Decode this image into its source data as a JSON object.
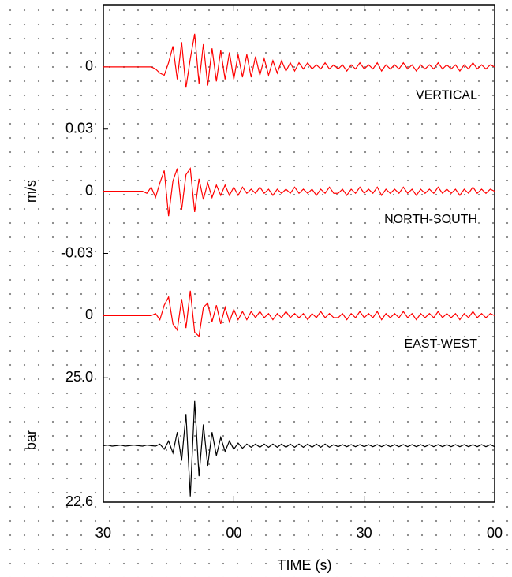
{
  "chart_data": [
    {
      "type": "line",
      "x": [
        0,
        1,
        2,
        3,
        4,
        5,
        6,
        7,
        8,
        9,
        10,
        11,
        12,
        13,
        14,
        15,
        16,
        17,
        18,
        19,
        20,
        21,
        22,
        23,
        24,
        25,
        26,
        27,
        28,
        29,
        30,
        31,
        32,
        33,
        34,
        35,
        36,
        37,
        38,
        39,
        40,
        41,
        42,
        43,
        44,
        45,
        46,
        47,
        48,
        49,
        50,
        51,
        52,
        53,
        54,
        55,
        56,
        57,
        58,
        59,
        60,
        61,
        62,
        63,
        64,
        65,
        66,
        67,
        68,
        69,
        70,
        71,
        72,
        73,
        74,
        75,
        76,
        77,
        78,
        79,
        80,
        81,
        82,
        83,
        84,
        85,
        86,
        87,
        88,
        89,
        90
      ],
      "series": [
        {
          "name": "VERTICAL",
          "color": "#ff0000",
          "values": [
            0,
            0,
            0,
            0,
            0,
            0,
            0,
            0,
            0,
            0,
            0,
            0,
            -0.001,
            -0.003,
            -0.004,
            0.002,
            0.01,
            -0.006,
            0.012,
            -0.01,
            0.004,
            0.016,
            -0.008,
            0.011,
            -0.009,
            0.009,
            -0.007,
            0.008,
            -0.006,
            0.007,
            -0.006,
            0.006,
            -0.005,
            0.006,
            -0.005,
            0.005,
            -0.004,
            0.004,
            -0.004,
            0.003,
            -0.003,
            0.003,
            -0.002,
            0.002,
            -0.002,
            0.002,
            -0.001,
            0.002,
            -0.001,
            0.001,
            -0.001,
            0.002,
            -0.001,
            0.001,
            -0.001,
            0.001,
            -0.002,
            0.001,
            -0.001,
            0.002,
            -0.001,
            0.001,
            -0.001,
            0.002,
            -0.002,
            0.001,
            -0.001,
            0.001,
            -0.001,
            0.002,
            -0.001,
            0.001,
            -0.002,
            0.001,
            -0.001,
            0.001,
            -0.001,
            0.002,
            -0.001,
            0.001,
            -0.001,
            0.001,
            -0.002,
            0.001,
            -0.001,
            0.002,
            -0.001,
            0.001,
            -0.001,
            0.001,
            0
          ]
        }
      ],
      "ylim": [
        -0.03,
        0.03
      ],
      "yticks": [
        0
      ]
    },
    {
      "type": "line",
      "x": [
        0,
        1,
        2,
        3,
        4,
        5,
        6,
        7,
        8,
        9,
        10,
        11,
        12,
        13,
        14,
        15,
        16,
        17,
        18,
        19,
        20,
        21,
        22,
        23,
        24,
        25,
        26,
        27,
        28,
        29,
        30,
        31,
        32,
        33,
        34,
        35,
        36,
        37,
        38,
        39,
        40,
        41,
        42,
        43,
        44,
        45,
        46,
        47,
        48,
        49,
        50,
        51,
        52,
        53,
        54,
        55,
        56,
        57,
        58,
        59,
        60,
        61,
        62,
        63,
        64,
        65,
        66,
        67,
        68,
        69,
        70,
        71,
        72,
        73,
        74,
        75,
        76,
        77,
        78,
        79,
        80,
        81,
        82,
        83,
        84,
        85,
        86,
        87,
        88,
        89,
        90
      ],
      "series": [
        {
          "name": "NORTH-SOUTH",
          "color": "#ff0000",
          "values": [
            0,
            0,
            0,
            0,
            0,
            0,
            0,
            0,
            0,
            0,
            -0.001,
            0.002,
            -0.003,
            0.004,
            0.01,
            -0.012,
            0.005,
            0.011,
            -0.009,
            0.008,
            0.011,
            -0.01,
            0.006,
            -0.004,
            0.004,
            -0.003,
            0.003,
            -0.002,
            0.003,
            -0.002,
            0.002,
            -0.002,
            0.002,
            -0.001,
            0.001,
            -0.001,
            0.002,
            -0.001,
            0.001,
            -0.002,
            0.001,
            -0.001,
            0.001,
            -0.001,
            0.002,
            -0.001,
            0.001,
            -0.001,
            0.001,
            -0.002,
            0.001,
            -0.001,
            0.002,
            -0.001,
            -0.001,
            0.001,
            -0.002,
            0.001,
            -0.001,
            0.002,
            -0.001,
            0.001,
            -0.001,
            0.002,
            -0.002,
            0.001,
            -0.001,
            0.001,
            -0.001,
            0.002,
            -0.001,
            0.001,
            -0.002,
            0.001,
            -0.001,
            0.001,
            -0.001,
            0.002,
            -0.001,
            0.001,
            -0.001,
            0.001,
            -0.002,
            0.001,
            -0.001,
            0.002,
            -0.001,
            0.001,
            -0.001,
            0.001,
            0
          ]
        }
      ],
      "ylim": [
        -0.03,
        0.03
      ],
      "yticks": [
        0.03,
        0,
        -0.03
      ],
      "ylabel": "m/s"
    },
    {
      "type": "line",
      "x": [
        0,
        1,
        2,
        3,
        4,
        5,
        6,
        7,
        8,
        9,
        10,
        11,
        12,
        13,
        14,
        15,
        16,
        17,
        18,
        19,
        20,
        21,
        22,
        23,
        24,
        25,
        26,
        27,
        28,
        29,
        30,
        31,
        32,
        33,
        34,
        35,
        36,
        37,
        38,
        39,
        40,
        41,
        42,
        43,
        44,
        45,
        46,
        47,
        48,
        49,
        50,
        51,
        52,
        53,
        54,
        55,
        56,
        57,
        58,
        59,
        60,
        61,
        62,
        63,
        64,
        65,
        66,
        67,
        68,
        69,
        70,
        71,
        72,
        73,
        74,
        75,
        76,
        77,
        78,
        79,
        80,
        81,
        82,
        83,
        84,
        85,
        86,
        87,
        88,
        89,
        90
      ],
      "series": [
        {
          "name": "EAST-WEST",
          "color": "#ff0000",
          "values": [
            0,
            0,
            0,
            0,
            0,
            0,
            0,
            0,
            0,
            0,
            0,
            0,
            0.001,
            -0.002,
            0.005,
            0.009,
            -0.004,
            -0.007,
            0.008,
            -0.006,
            0.012,
            -0.008,
            -0.01,
            0.004,
            0.006,
            -0.003,
            0.005,
            -0.004,
            0.004,
            -0.003,
            0.003,
            -0.002,
            0.002,
            -0.002,
            0.002,
            -0.001,
            0.002,
            -0.001,
            0.001,
            -0.002,
            0.001,
            -0.001,
            0.002,
            -0.001,
            0.001,
            -0.001,
            0.001,
            -0.002,
            0.001,
            -0.001,
            0.002,
            -0.001,
            0.001,
            -0.001,
            -0.001,
            0.001,
            -0.002,
            0.001,
            -0.001,
            0.002,
            -0.001,
            0.001,
            -0.001,
            0.002,
            -0.002,
            0.001,
            -0.001,
            0.001,
            -0.001,
            0.002,
            -0.001,
            0.001,
            -0.002,
            0.001,
            -0.001,
            0.001,
            -0.001,
            0.002,
            -0.001,
            0.001,
            -0.001,
            0.001,
            -0.002,
            0.001,
            -0.001,
            0.002,
            -0.001,
            0.001,
            -0.001,
            0.001,
            0
          ]
        }
      ],
      "ylim": [
        -0.03,
        0.03
      ],
      "yticks": [
        0
      ]
    },
    {
      "type": "line",
      "x": [
        0,
        1,
        2,
        3,
        4,
        5,
        6,
        7,
        8,
        9,
        10,
        11,
        12,
        13,
        14,
        15,
        16,
        17,
        18,
        19,
        20,
        21,
        22,
        23,
        24,
        25,
        26,
        27,
        28,
        29,
        30,
        31,
        32,
        33,
        34,
        35,
        36,
        37,
        38,
        39,
        40,
        41,
        42,
        43,
        44,
        45,
        46,
        47,
        48,
        49,
        50,
        51,
        52,
        53,
        54,
        55,
        56,
        57,
        58,
        59,
        60,
        61,
        62,
        63,
        64,
        65,
        66,
        67,
        68,
        69,
        70,
        71,
        72,
        73,
        74,
        75,
        76,
        77,
        78,
        79,
        80,
        81,
        82,
        83,
        84,
        85,
        86,
        87,
        88,
        89,
        90
      ],
      "series": [
        {
          "color": "#000000",
          "values": [
            23.69,
            23.7,
            23.68,
            23.69,
            23.7,
            23.68,
            23.69,
            23.7,
            23.69,
            23.68,
            23.7,
            23.69,
            23.68,
            23.72,
            23.62,
            23.78,
            23.55,
            23.95,
            23.4,
            24.3,
            22.71,
            24.55,
            23.1,
            24.1,
            23.3,
            23.95,
            23.5,
            23.85,
            23.58,
            23.78,
            23.62,
            23.74,
            23.64,
            23.72,
            23.66,
            23.72,
            23.66,
            23.72,
            23.66,
            23.72,
            23.66,
            23.72,
            23.66,
            23.72,
            23.66,
            23.72,
            23.66,
            23.72,
            23.66,
            23.72,
            23.66,
            23.72,
            23.66,
            23.71,
            23.67,
            23.71,
            23.67,
            23.71,
            23.67,
            23.71,
            23.67,
            23.71,
            23.67,
            23.71,
            23.67,
            23.71,
            23.67,
            23.71,
            23.67,
            23.71,
            23.67,
            23.71,
            23.67,
            23.71,
            23.67,
            23.71,
            23.67,
            23.71,
            23.67,
            23.71,
            23.67,
            23.71,
            23.67,
            23.71,
            23.67,
            23.71,
            23.67,
            23.71,
            23.67,
            23.71,
            23.67
          ]
        }
      ],
      "ylim": [
        22.6,
        25.0
      ],
      "yticks": [
        {
          "value": 25.0,
          "label": "25.0"
        },
        22.6
      ],
      "ylabel": "bar",
      "xlim": [
        0,
        90
      ],
      "xticks": [
        {
          "value": 0,
          "label": "30"
        },
        {
          "value": 30,
          "label": "00"
        },
        {
          "value": 60,
          "label": "30"
        },
        {
          "value": 90,
          "label": "00"
        }
      ],
      "xlabel": "TIME (s)"
    }
  ]
}
